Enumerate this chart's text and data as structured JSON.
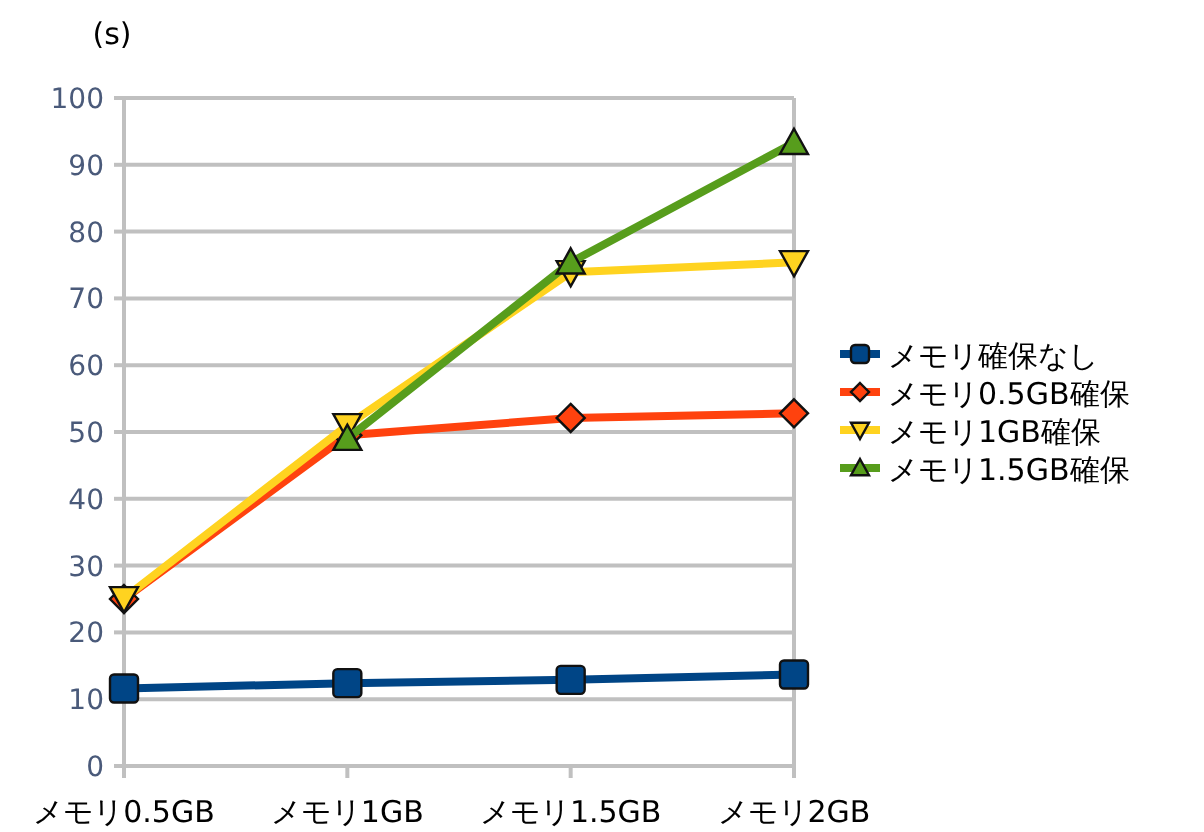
{
  "chart_data": {
    "type": "line",
    "ylabel": "(s)",
    "categories": [
      "メモリ0.5GB",
      "メモリ1GB",
      "メモリ1.5GB",
      "メモリ2GB"
    ],
    "ylim": [
      0,
      100
    ],
    "yticks": [
      0,
      10,
      20,
      30,
      40,
      50,
      60,
      70,
      80,
      90,
      100
    ],
    "grid": "y",
    "legend": "right",
    "series": [
      {
        "name": "メモリ確保なし",
        "color": "#004586",
        "marker": "square",
        "values": [
          11.6,
          12.4,
          12.9,
          13.7
        ]
      },
      {
        "name": "メモリ0.5GB確保",
        "color": "#ff420e",
        "marker": "diamond",
        "values": [
          25,
          49.5,
          52.1,
          52.8
        ]
      },
      {
        "name": "メモリ1GB確保",
        "color": "#ffd320",
        "marker": "triangle-down",
        "values": [
          25.1,
          51,
          73.9,
          75.4
        ]
      },
      {
        "name": "メモリ1.5GB確保",
        "color": "#579d1c",
        "marker": "triangle",
        "values": [
          null,
          49,
          75.4,
          93.3
        ]
      }
    ]
  }
}
